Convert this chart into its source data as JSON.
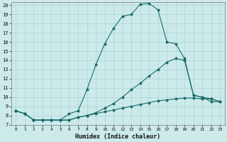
{
  "xlabel": "Humidex (Indice chaleur)",
  "bg_color": "#cceaea",
  "grid_color": "#aad4d4",
  "line_color": "#1a6b6b",
  "xlim": [
    -0.5,
    23.5
  ],
  "ylim": [
    7,
    20.3
  ],
  "xticks": [
    0,
    1,
    2,
    3,
    4,
    5,
    6,
    7,
    8,
    9,
    10,
    11,
    12,
    13,
    14,
    15,
    16,
    17,
    18,
    19,
    20,
    21,
    22,
    23
  ],
  "yticks": [
    7,
    8,
    9,
    10,
    11,
    12,
    13,
    14,
    15,
    16,
    17,
    18,
    19,
    20
  ],
  "curve1_x": [
    0,
    1,
    2,
    3,
    4,
    5,
    6,
    7,
    8,
    9,
    10,
    11,
    12,
    13,
    14,
    15,
    16,
    17,
    18,
    19,
    20,
    21,
    22,
    23
  ],
  "curve1_y": [
    8.5,
    8.2,
    7.5,
    7.5,
    7.5,
    7.5,
    8.2,
    8.5,
    10.8,
    13.5,
    15.8,
    17.5,
    18.8,
    19.0,
    20.1,
    20.2,
    19.5,
    16.0,
    15.8,
    14.2,
    10.2,
    10.0,
    9.5,
    9.5
  ],
  "curve2_x": [
    0,
    1,
    2,
    3,
    4,
    5,
    6,
    7,
    8,
    9,
    10,
    11,
    12,
    13,
    14,
    15,
    16,
    17,
    18,
    19,
    20,
    21,
    22,
    23
  ],
  "curve2_y": [
    8.5,
    8.2,
    7.5,
    7.5,
    7.5,
    7.5,
    7.5,
    7.8,
    8.0,
    8.3,
    8.8,
    9.3,
    10.0,
    10.8,
    11.5,
    12.3,
    13.0,
    13.8,
    14.2,
    14.0,
    10.2,
    10.0,
    9.8,
    9.5
  ],
  "curve3_x": [
    0,
    1,
    2,
    3,
    4,
    5,
    6,
    7,
    8,
    9,
    10,
    11,
    12,
    13,
    14,
    15,
    16,
    17,
    18,
    19,
    20,
    21,
    22,
    23
  ],
  "curve3_y": [
    8.5,
    8.2,
    7.5,
    7.5,
    7.5,
    7.5,
    7.5,
    7.8,
    8.0,
    8.2,
    8.4,
    8.6,
    8.8,
    9.0,
    9.2,
    9.4,
    9.6,
    9.7,
    9.8,
    9.9,
    9.9,
    9.8,
    9.8,
    9.5
  ]
}
